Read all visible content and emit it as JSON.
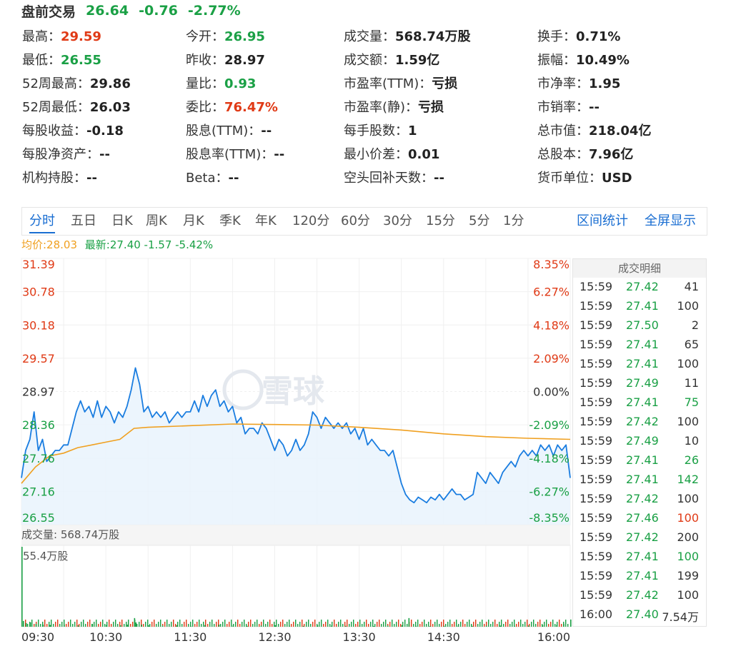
{
  "premarket": {
    "label": "盘前交易",
    "price": "26.64",
    "change": "-0.76",
    "percent": "-2.77%"
  },
  "stats": [
    {
      "k": "最高：",
      "v": "29.59",
      "c": "red"
    },
    {
      "k": "今开：",
      "v": "26.95",
      "c": "green"
    },
    {
      "k": "成交量：",
      "v": "568.74万股",
      "c": ""
    },
    {
      "k": "换手：",
      "v": "0.71%",
      "c": ""
    },
    {
      "k": "最低：",
      "v": "26.55",
      "c": "green"
    },
    {
      "k": "昨收：",
      "v": "28.97",
      "c": ""
    },
    {
      "k": "成交额：",
      "v": "1.59亿",
      "c": ""
    },
    {
      "k": "振幅：",
      "v": "10.49%",
      "c": ""
    },
    {
      "k": "52周最高：",
      "v": "29.86",
      "c": ""
    },
    {
      "k": "量比：",
      "v": "0.93",
      "c": "green"
    },
    {
      "k": "市盈率(TTM)：",
      "v": "亏损",
      "c": ""
    },
    {
      "k": "市净率：",
      "v": "1.95",
      "c": ""
    },
    {
      "k": "52周最低：",
      "v": "26.03",
      "c": ""
    },
    {
      "k": "委比：",
      "v": "76.47%",
      "c": "red"
    },
    {
      "k": "市盈率(静)：",
      "v": "亏损",
      "c": ""
    },
    {
      "k": "市销率：",
      "v": "--",
      "c": ""
    },
    {
      "k": "每股收益：",
      "v": "-0.18",
      "c": ""
    },
    {
      "k": "股息(TTM)：",
      "v": "--",
      "c": ""
    },
    {
      "k": "每手股数：",
      "v": "1",
      "c": ""
    },
    {
      "k": "总市值：",
      "v": "218.04亿",
      "c": ""
    },
    {
      "k": "每股净资产：",
      "v": "--",
      "c": ""
    },
    {
      "k": "股息率(TTM)：",
      "v": "--",
      "c": ""
    },
    {
      "k": "最小价差：",
      "v": "0.01",
      "c": ""
    },
    {
      "k": "总股本：",
      "v": "7.96亿",
      "c": ""
    },
    {
      "k": "机构持股：",
      "v": "--",
      "c": ""
    },
    {
      "k": "Beta：",
      "v": "--",
      "c": ""
    },
    {
      "k": "空头回补天数：",
      "v": "--",
      "c": ""
    },
    {
      "k": "货币单位：",
      "v": "USD",
      "c": ""
    }
  ],
  "tabs": [
    "分时",
    "五日",
    "日K",
    "周K",
    "月K",
    "季K",
    "年K",
    "120分",
    "60分",
    "30分",
    "15分",
    "5分",
    "1分"
  ],
  "active_tab": "分时",
  "tab_links": [
    "区间统计",
    "全屏显示"
  ],
  "legend": {
    "avg": "均价:28.03",
    "latest": "最新:27.40 -1.57 -5.42%"
  },
  "watermark": "雪球",
  "volume": {
    "label": "成交量: 568.74万股",
    "max": "55.4万股"
  },
  "trades": {
    "title": "成交明细",
    "rows": [
      {
        "t": "15:59",
        "p": "27.42",
        "q": "41",
        "c": ""
      },
      {
        "t": "15:59",
        "p": "27.41",
        "q": "100",
        "c": ""
      },
      {
        "t": "15:59",
        "p": "27.50",
        "q": "2",
        "c": ""
      },
      {
        "t": "15:59",
        "p": "27.41",
        "q": "65",
        "c": ""
      },
      {
        "t": "15:59",
        "p": "27.41",
        "q": "100",
        "c": ""
      },
      {
        "t": "15:59",
        "p": "27.49",
        "q": "11",
        "c": ""
      },
      {
        "t": "15:59",
        "p": "27.41",
        "q": "75",
        "c": "green"
      },
      {
        "t": "15:59",
        "p": "27.42",
        "q": "100",
        "c": ""
      },
      {
        "t": "15:59",
        "p": "27.49",
        "q": "10",
        "c": ""
      },
      {
        "t": "15:59",
        "p": "27.41",
        "q": "26",
        "c": "green"
      },
      {
        "t": "15:59",
        "p": "27.41",
        "q": "142",
        "c": "green"
      },
      {
        "t": "15:59",
        "p": "27.42",
        "q": "100",
        "c": ""
      },
      {
        "t": "15:59",
        "p": "27.46",
        "q": "100",
        "c": "red"
      },
      {
        "t": "15:59",
        "p": "27.42",
        "q": "200",
        "c": ""
      },
      {
        "t": "15:59",
        "p": "27.41",
        "q": "100",
        "c": "green"
      },
      {
        "t": "15:59",
        "p": "27.41",
        "q": "199",
        "c": ""
      },
      {
        "t": "15:59",
        "p": "27.42",
        "q": "100",
        "c": ""
      },
      {
        "t": "16:00",
        "p": "27.40",
        "q": "7.54万",
        "c": ""
      }
    ]
  },
  "chart_data": {
    "type": "line",
    "prev_close": 28.97,
    "ylim": [
      26.55,
      31.39
    ],
    "y_ticks_left": [
      "31.39",
      "30.78",
      "30.18",
      "29.57",
      "28.97",
      "28.36",
      "27.76",
      "27.16",
      "26.55"
    ],
    "y_ticks_right": [
      "8.35%",
      "6.27%",
      "4.18%",
      "2.09%",
      "0.00%",
      "-2.09%",
      "-4.18%",
      "-6.27%",
      "-8.35%"
    ],
    "x_ticks": [
      "09:30",
      "10:30",
      "11:30",
      "12:30",
      "13:30",
      "14:30",
      "16:00"
    ],
    "x_time_range": [
      "09:30",
      "16:00"
    ],
    "price": [
      [
        "09:30",
        27.4
      ],
      [
        "09:33",
        27.9
      ],
      [
        "09:36",
        28.1
      ],
      [
        "09:39",
        28.6
      ],
      [
        "09:42",
        27.9
      ],
      [
        "09:45",
        28.1
      ],
      [
        "09:48",
        27.7
      ],
      [
        "09:51",
        27.8
      ],
      [
        "09:54",
        27.9
      ],
      [
        "09:57",
        27.9
      ],
      [
        "10:00",
        28.0
      ],
      [
        "10:03",
        28.0
      ],
      [
        "10:06",
        28.3
      ],
      [
        "10:09",
        28.6
      ],
      [
        "10:12",
        28.8
      ],
      [
        "10:15",
        28.6
      ],
      [
        "10:18",
        28.7
      ],
      [
        "10:21",
        28.5
      ],
      [
        "10:24",
        28.8
      ],
      [
        "10:27",
        28.5
      ],
      [
        "10:30",
        28.7
      ],
      [
        "10:33",
        28.6
      ],
      [
        "10:36",
        28.4
      ],
      [
        "10:39",
        28.6
      ],
      [
        "10:42",
        28.5
      ],
      [
        "10:45",
        28.7
      ],
      [
        "10:48",
        29.0
      ],
      [
        "10:51",
        29.4
      ],
      [
        "10:54",
        29.1
      ],
      [
        "10:57",
        28.6
      ],
      [
        "11:00",
        28.7
      ],
      [
        "11:03",
        28.5
      ],
      [
        "11:06",
        28.6
      ],
      [
        "11:09",
        28.5
      ],
      [
        "11:12",
        28.6
      ],
      [
        "11:15",
        28.4
      ],
      [
        "11:18",
        28.5
      ],
      [
        "11:21",
        28.6
      ],
      [
        "11:24",
        28.5
      ],
      [
        "11:27",
        28.6
      ],
      [
        "11:30",
        28.6
      ],
      [
        "11:33",
        28.8
      ],
      [
        "11:36",
        28.6
      ],
      [
        "11:39",
        28.9
      ],
      [
        "11:42",
        28.7
      ],
      [
        "11:45",
        28.9
      ],
      [
        "11:48",
        29.0
      ],
      [
        "11:51",
        28.7
      ],
      [
        "11:54",
        28.8
      ],
      [
        "11:57",
        28.6
      ],
      [
        "12:00",
        28.7
      ],
      [
        "12:03",
        28.4
      ],
      [
        "12:06",
        28.5
      ],
      [
        "12:09",
        28.2
      ],
      [
        "12:12",
        28.3
      ],
      [
        "12:15",
        28.3
      ],
      [
        "12:18",
        28.2
      ],
      [
        "12:21",
        28.4
      ],
      [
        "12:24",
        28.3
      ],
      [
        "12:27",
        28.1
      ],
      [
        "12:30",
        27.9
      ],
      [
        "12:33",
        28.1
      ],
      [
        "12:36",
        28.0
      ],
      [
        "12:39",
        27.8
      ],
      [
        "12:42",
        27.9
      ],
      [
        "12:45",
        28.1
      ],
      [
        "12:48",
        27.9
      ],
      [
        "12:51",
        28.0
      ],
      [
        "12:54",
        28.2
      ],
      [
        "12:57",
        28.6
      ],
      [
        "13:00",
        28.5
      ],
      [
        "13:03",
        28.3
      ],
      [
        "13:06",
        28.5
      ],
      [
        "13:09",
        28.4
      ],
      [
        "13:12",
        28.3
      ],
      [
        "13:15",
        28.4
      ],
      [
        "13:18",
        28.3
      ],
      [
        "13:21",
        28.4
      ],
      [
        "13:24",
        28.2
      ],
      [
        "13:27",
        28.3
      ],
      [
        "13:30",
        28.1
      ],
      [
        "13:33",
        28.3
      ],
      [
        "13:36",
        28.0
      ],
      [
        "13:39",
        28.1
      ],
      [
        "13:42",
        28.0
      ],
      [
        "13:45",
        27.9
      ],
      [
        "13:48",
        27.9
      ],
      [
        "13:51",
        27.8
      ],
      [
        "13:54",
        27.9
      ],
      [
        "13:57",
        27.6
      ],
      [
        "14:00",
        27.3
      ],
      [
        "14:03",
        27.1
      ],
      [
        "14:06",
        27.0
      ],
      [
        "14:09",
        26.95
      ],
      [
        "14:12",
        27.05
      ],
      [
        "14:15",
        27.0
      ],
      [
        "14:18",
        26.95
      ],
      [
        "14:21",
        27.05
      ],
      [
        "14:24",
        27.0
      ],
      [
        "14:27",
        27.1
      ],
      [
        "14:30",
        27.0
      ],
      [
        "14:33",
        27.1
      ],
      [
        "14:36",
        27.2
      ],
      [
        "14:39",
        27.1
      ],
      [
        "14:42",
        27.1
      ],
      [
        "14:45",
        27.0
      ],
      [
        "14:48",
        27.05
      ],
      [
        "14:51",
        27.1
      ],
      [
        "14:54",
        27.5
      ],
      [
        "14:57",
        27.4
      ],
      [
        "15:00",
        27.3
      ],
      [
        "15:03",
        27.5
      ],
      [
        "15:06",
        27.4
      ],
      [
        "15:09",
        27.3
      ],
      [
        "15:12",
        27.5
      ],
      [
        "15:15",
        27.6
      ],
      [
        "15:18",
        27.7
      ],
      [
        "15:21",
        27.6
      ],
      [
        "15:24",
        27.8
      ],
      [
        "15:27",
        27.9
      ],
      [
        "15:30",
        27.8
      ],
      [
        "15:33",
        27.9
      ],
      [
        "15:36",
        27.8
      ],
      [
        "15:39",
        28.0
      ],
      [
        "15:42",
        27.9
      ],
      [
        "15:45",
        28.0
      ],
      [
        "15:48",
        27.8
      ],
      [
        "15:51",
        28.0
      ],
      [
        "15:54",
        27.9
      ],
      [
        "15:57",
        28.0
      ],
      [
        "16:00",
        27.4
      ]
    ],
    "avg": [
      [
        "09:30",
        27.3
      ],
      [
        "09:40",
        27.6
      ],
      [
        "09:50",
        27.8
      ],
      [
        "10:00",
        27.85
      ],
      [
        "10:10",
        27.95
      ],
      [
        "10:20",
        28.0
      ],
      [
        "10:30",
        28.05
      ],
      [
        "10:40",
        28.1
      ],
      [
        "10:45",
        28.2
      ],
      [
        "10:50",
        28.3
      ],
      [
        "11:00",
        28.32
      ],
      [
        "11:30",
        28.35
      ],
      [
        "12:00",
        28.38
      ],
      [
        "12:30",
        28.37
      ],
      [
        "13:00",
        28.36
      ],
      [
        "13:30",
        28.32
      ],
      [
        "14:00",
        28.27
      ],
      [
        "14:30",
        28.2
      ],
      [
        "15:00",
        28.15
      ],
      [
        "15:30",
        28.12
      ],
      [
        "16:00",
        28.1
      ]
    ],
    "volume_max": 55.4,
    "volume_unit": "万股",
    "volume_series": [
      [
        "09:30",
        55.4
      ],
      [
        "09:31",
        4
      ],
      [
        "09:33",
        2.5
      ],
      [
        "09:36",
        3
      ],
      [
        "09:40",
        2
      ],
      [
        "09:45",
        1.5
      ],
      [
        "09:50",
        1.2
      ],
      [
        "10:00",
        1.5
      ],
      [
        "10:10",
        1
      ],
      [
        "10:20",
        2
      ],
      [
        "10:30",
        1.2
      ],
      [
        "10:40",
        1
      ],
      [
        "10:45",
        1.5
      ],
      [
        "10:50",
        6
      ],
      [
        "10:51",
        3
      ],
      [
        "10:55",
        1.5
      ],
      [
        "11:00",
        1
      ],
      [
        "11:10",
        0.8
      ],
      [
        "11:20",
        1
      ],
      [
        "11:30",
        0.6
      ],
      [
        "11:40",
        1.2
      ],
      [
        "11:50",
        1.5
      ],
      [
        "12:00",
        0.8
      ],
      [
        "12:10",
        0.6
      ],
      [
        "12:20",
        0.8
      ],
      [
        "12:30",
        1
      ],
      [
        "12:40",
        0.7
      ],
      [
        "12:50",
        0.6
      ],
      [
        "13:00",
        1
      ],
      [
        "13:10",
        0.8
      ],
      [
        "13:20",
        0.6
      ],
      [
        "13:30",
        0.8
      ],
      [
        "13:40",
        0.5
      ],
      [
        "13:50",
        0.8
      ],
      [
        "14:00",
        1
      ],
      [
        "14:05",
        6
      ],
      [
        "14:10",
        0.6
      ],
      [
        "14:20",
        0.5
      ],
      [
        "14:30",
        0.6
      ],
      [
        "14:40",
        0.8
      ],
      [
        "14:50",
        0.6
      ],
      [
        "15:00",
        0.7
      ],
      [
        "15:10",
        0.8
      ],
      [
        "15:20",
        0.6
      ],
      [
        "15:30",
        0.9
      ],
      [
        "15:40",
        1
      ],
      [
        "15:50",
        1.2
      ],
      [
        "15:55",
        2
      ],
      [
        "16:00",
        5
      ]
    ]
  },
  "colors": {
    "up": "#e03a16",
    "down": "#1aa045",
    "price_line": "#1a7de0",
    "avg_line": "#f0a020",
    "accent": "#1a6ed2"
  }
}
